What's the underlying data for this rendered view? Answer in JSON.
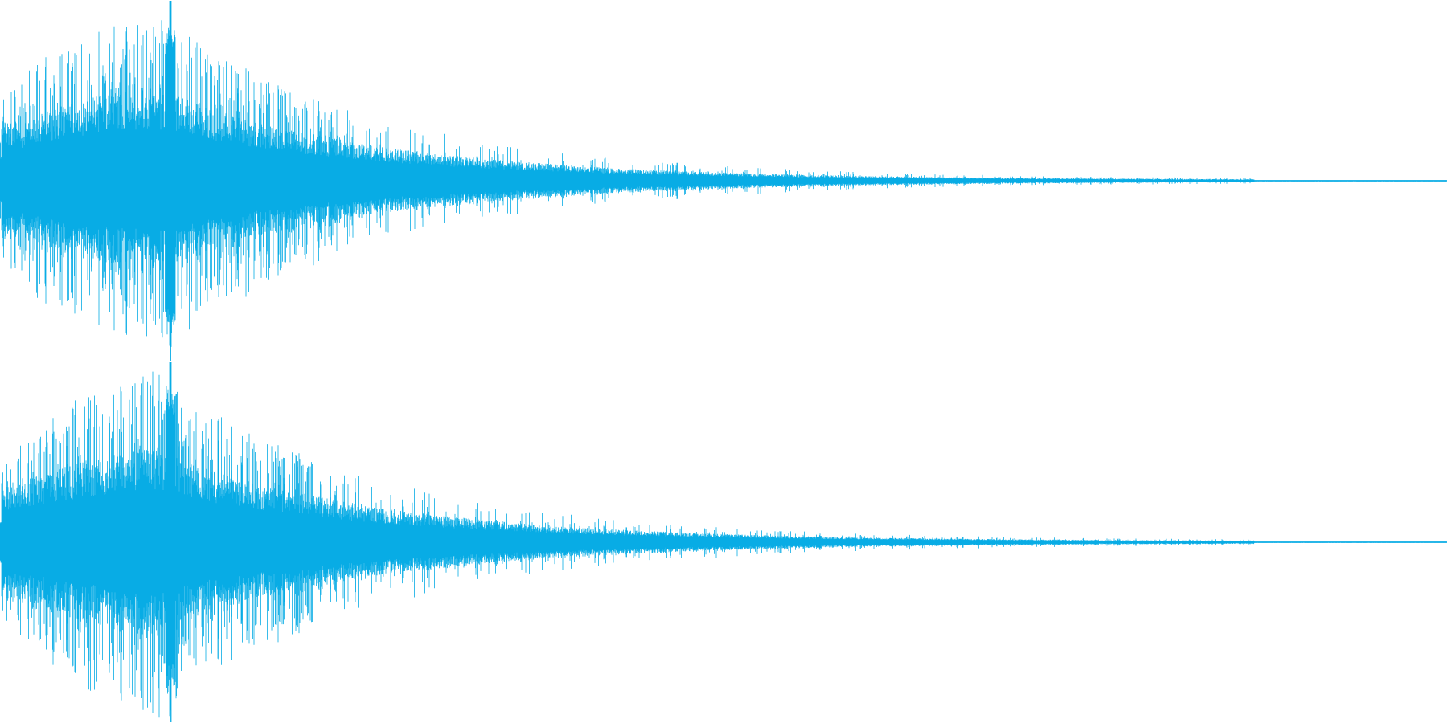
{
  "waveform": {
    "channels": [
      {
        "name": "",
        "peak_sample_fraction": 0.118,
        "peak_amplitude": 1.0
      },
      {
        "name": "",
        "peak_sample_fraction": 0.118,
        "peak_amplitude": 1.0
      }
    ],
    "colors": {
      "waveform": "#08ace5",
      "background": "#ffffff"
    }
  }
}
